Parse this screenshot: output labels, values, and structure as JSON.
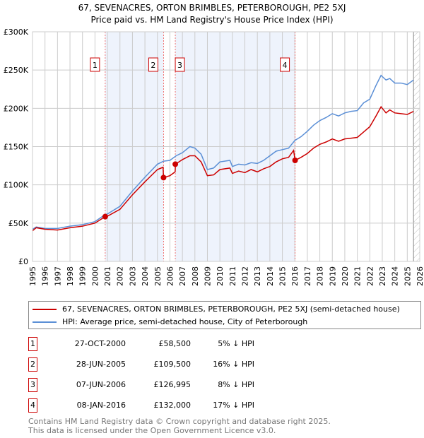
{
  "chart_data": {
    "type": "line",
    "title": "67, SEVENACRES, ORTON BRIMBLES, PETERBOROUGH, PE2 5XJ",
    "subtitle": "Price paid vs. HM Land Registry's House Price Index (HPI)",
    "xlim": [
      1995,
      2026
    ],
    "ylim": [
      0,
      300000
    ],
    "y_ticks": [
      {
        "v": 0,
        "label": "£0"
      },
      {
        "v": 50000,
        "label": "£50K"
      },
      {
        "v": 100000,
        "label": "£100K"
      },
      {
        "v": 150000,
        "label": "£150K"
      },
      {
        "v": 200000,
        "label": "£200K"
      },
      {
        "v": 250000,
        "label": "£250K"
      },
      {
        "v": 300000,
        "label": "£300K"
      }
    ],
    "x_ticks": [
      "1995",
      "1996",
      "1997",
      "1998",
      "1999",
      "2000",
      "2001",
      "2002",
      "2003",
      "2004",
      "2005",
      "2006",
      "2007",
      "2008",
      "2009",
      "2010",
      "2011",
      "2012",
      "2013",
      "2014",
      "2015",
      "2016",
      "2017",
      "2018",
      "2019",
      "2020",
      "2021",
      "2022",
      "2023",
      "2024",
      "2025",
      "2026"
    ],
    "grid": true,
    "shaded_periods": [
      [
        2000.82,
        2005.49
      ],
      [
        2006.43,
        2016.02
      ]
    ],
    "hatched_from": 2025.5,
    "series": [
      {
        "name": "67, SEVENACRES, ORTON BRIMBLES, PETERBOROUGH, PE2 5XJ (semi-detached house)",
        "color": "#cc0000",
        "x": [
          1995,
          1995.3,
          1996,
          1997,
          1998,
          1999,
          2000,
          2000.82,
          2001,
          2002,
          2003,
          2004,
          2005,
          2005.45,
          2005.49,
          2006,
          2006.42,
          2006.44,
          2007,
          2007.6,
          2008,
          2008.5,
          2009,
          2009.5,
          2010,
          2010.8,
          2011,
          2011.5,
          2012,
          2012.5,
          2013,
          2013.5,
          2014,
          2014.5,
          2015,
          2015.5,
          2015.9,
          2016.02,
          2016.5,
          2017,
          2017.5,
          2018,
          2018.5,
          2019,
          2019.5,
          2020,
          2020.5,
          2021,
          2021.5,
          2022,
          2022.5,
          2022.9,
          2023.3,
          2023.6,
          2024,
          2024.5,
          2025,
          2025.5
        ],
        "y": [
          40000,
          44000,
          42000,
          41000,
          44000,
          46000,
          50000,
          58500,
          59000,
          68000,
          87000,
          104000,
          120000,
          123000,
          109500,
          112000,
          117000,
          127000,
          133000,
          138000,
          138000,
          130000,
          112000,
          113000,
          120000,
          122000,
          115000,
          118000,
          116000,
          120000,
          117000,
          121000,
          124000,
          130000,
          134000,
          136000,
          145000,
          132000,
          136000,
          141000,
          148000,
          153000,
          156000,
          160000,
          157000,
          160000,
          161000,
          162000,
          169000,
          176000,
          190000,
          202000,
          194000,
          198000,
          194000,
          193000,
          192000,
          196000
        ]
      },
      {
        "name": "HPI: Average price, semi-detached house, City of Peterborough",
        "color": "#5b8fd6",
        "x": [
          1995,
          1995.3,
          1996,
          1997,
          1998,
          1999,
          2000,
          2000.8,
          2001,
          2002,
          2003,
          2004,
          2005,
          2005.5,
          2006,
          2006.5,
          2007,
          2007.6,
          2008,
          2008.5,
          2009,
          2009.5,
          2010,
          2010.8,
          2011,
          2011.5,
          2012,
          2012.5,
          2013,
          2013.5,
          2014,
          2014.5,
          2015,
          2015.5,
          2016,
          2016.5,
          2017,
          2017.5,
          2018,
          2018.5,
          2019,
          2019.5,
          2020,
          2020.5,
          2021,
          2021.5,
          2022,
          2022.5,
          2022.9,
          2023.3,
          2023.6,
          2024,
          2024.5,
          2025,
          2025.5
        ],
        "y": [
          42000,
          45000,
          43000,
          43000,
          46000,
          48000,
          52000,
          61000,
          62000,
          72000,
          92000,
          110000,
          127000,
          131000,
          132000,
          138000,
          142000,
          150000,
          148000,
          140000,
          120000,
          122000,
          130000,
          132000,
          124000,
          127000,
          126000,
          129000,
          128000,
          132000,
          138000,
          144000,
          146000,
          148000,
          158000,
          163000,
          170000,
          178000,
          184000,
          188000,
          193000,
          190000,
          194000,
          196000,
          197000,
          207000,
          212000,
          230000,
          243000,
          237000,
          239000,
          233000,
          233000,
          231000,
          237000
        ]
      }
    ],
    "sales": [
      {
        "n": "1",
        "x": 2000.82,
        "y": 58500,
        "date": "27-OCT-2000",
        "price": "£58,500",
        "hpi": "5% ↓ HPI"
      },
      {
        "n": "2",
        "x": 2005.49,
        "y": 109500,
        "date": "28-JUN-2005",
        "price": "£109,500",
        "hpi": "16% ↓ HPI"
      },
      {
        "n": "3",
        "x": 2006.43,
        "y": 126995,
        "date": "07-JUN-2006",
        "price": "£126,995",
        "hpi": "8% ↓ HPI"
      },
      {
        "n": "4",
        "x": 2016.02,
        "y": 132000,
        "date": "08-JAN-2016",
        "price": "£132,000",
        "hpi": "17% ↓ HPI"
      }
    ]
  },
  "legend": {
    "red": "67, SEVENACRES, ORTON BRIMBLES, PETERBOROUGH, PE2 5XJ (semi-detached house)",
    "blue": "HPI: Average price, semi-detached house, City of Peterborough"
  },
  "footer": {
    "line1": "Contains HM Land Registry data © Crown copyright and database right 2025.",
    "line2": "This data is licensed under the Open Government Licence v3.0."
  }
}
